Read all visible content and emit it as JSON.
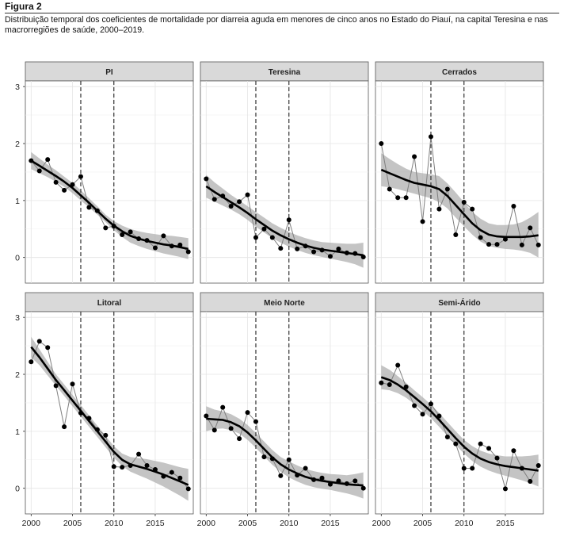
{
  "figure": {
    "label": "Figura 2",
    "caption": "Distribuição temporal dos coeficientes de mortalidade por diarreia aguda em menores de cinco anos no Estado do Piauí, na capital Teresina e nas macrorregiões de saúde, 2000–2019."
  },
  "colors": {
    "strip_fill": "#d9d9d9",
    "panel_bg": "#ffffff",
    "grid": "#e4e4e4",
    "band": "#b0b0b0",
    "raw_line": "#7f7f7f",
    "smooth_line": "#000000",
    "points": "#000000",
    "vlines": "#333333"
  },
  "chart_data": {
    "type": "line",
    "layout": "faceted 2 rows x 3 columns, shared axes",
    "xlim": [
      1999.3,
      2019.6
    ],
    "ylim": [
      -0.45,
      3.1
    ],
    "x_ticks": [
      2000,
      2005,
      2010,
      2015
    ],
    "y_ticks": [
      0,
      1,
      2,
      3
    ],
    "vertical_reference_lines": [
      2006,
      2010
    ],
    "grid": true,
    "x": [
      2000,
      2001,
      2002,
      2003,
      2004,
      2005,
      2006,
      2007,
      2008,
      2009,
      2010,
      2011,
      2012,
      2013,
      2014,
      2015,
      2016,
      2017,
      2018,
      2019
    ],
    "panels": [
      {
        "name": "PI",
        "values": [
          1.7,
          1.52,
          1.72,
          1.32,
          1.18,
          1.28,
          1.42,
          0.88,
          0.82,
          0.52,
          0.55,
          0.4,
          0.45,
          0.33,
          0.3,
          0.17,
          0.38,
          0.2,
          0.22,
          0.1
        ],
        "trend": [
          1.7,
          1.61,
          1.52,
          1.43,
          1.33,
          1.22,
          1.09,
          0.96,
          0.82,
          0.68,
          0.56,
          0.46,
          0.38,
          0.33,
          0.29,
          0.26,
          0.23,
          0.21,
          0.18,
          0.15
        ],
        "lower": [
          1.55,
          1.48,
          1.41,
          1.33,
          1.24,
          1.13,
          1.0,
          0.88,
          0.75,
          0.62,
          0.48,
          0.36,
          0.26,
          0.2,
          0.15,
          0.11,
          0.07,
          0.04,
          0.01,
          -0.03
        ],
        "upper": [
          1.85,
          1.74,
          1.63,
          1.53,
          1.42,
          1.31,
          1.18,
          1.04,
          0.9,
          0.75,
          0.64,
          0.56,
          0.5,
          0.46,
          0.43,
          0.41,
          0.39,
          0.38,
          0.36,
          0.34
        ]
      },
      {
        "name": "Teresina",
        "values": [
          1.38,
          1.02,
          1.08,
          0.9,
          0.98,
          1.1,
          0.35,
          0.5,
          0.35,
          0.16,
          0.66,
          0.15,
          0.2,
          0.1,
          0.13,
          0.02,
          0.15,
          0.08,
          0.07,
          0.01
        ],
        "trend": [
          1.25,
          1.15,
          1.06,
          0.97,
          0.88,
          0.78,
          0.67,
          0.57,
          0.47,
          0.39,
          0.32,
          0.26,
          0.21,
          0.17,
          0.14,
          0.12,
          0.1,
          0.08,
          0.06,
          0.04
        ],
        "lower": [
          1.05,
          0.98,
          0.91,
          0.84,
          0.76,
          0.66,
          0.54,
          0.44,
          0.34,
          0.26,
          0.19,
          0.13,
          0.08,
          0.04,
          0.01,
          -0.02,
          -0.05,
          -0.08,
          -0.12,
          -0.18
        ],
        "upper": [
          1.45,
          1.32,
          1.21,
          1.1,
          1.0,
          0.9,
          0.8,
          0.7,
          0.6,
          0.52,
          0.45,
          0.39,
          0.34,
          0.3,
          0.27,
          0.26,
          0.25,
          0.24,
          0.24,
          0.26
        ]
      },
      {
        "name": "Cerrados",
        "values": [
          2.0,
          1.2,
          1.05,
          1.05,
          1.77,
          0.63,
          2.12,
          0.85,
          1.2,
          0.4,
          0.97,
          0.85,
          0.35,
          0.23,
          0.23,
          0.32,
          0.9,
          0.22,
          0.52,
          0.22
        ],
        "trend": [
          1.54,
          1.48,
          1.42,
          1.36,
          1.31,
          1.28,
          1.25,
          1.2,
          1.08,
          0.92,
          0.76,
          0.6,
          0.48,
          0.4,
          0.37,
          0.36,
          0.36,
          0.36,
          0.37,
          0.39
        ],
        "lower": [
          1.25,
          1.23,
          1.2,
          1.16,
          1.12,
          1.08,
          1.04,
          0.97,
          0.86,
          0.7,
          0.55,
          0.4,
          0.28,
          0.2,
          0.17,
          0.15,
          0.14,
          0.12,
          0.08,
          0.0
        ],
        "upper": [
          1.83,
          1.73,
          1.64,
          1.56,
          1.5,
          1.48,
          1.46,
          1.43,
          1.3,
          1.14,
          0.97,
          0.8,
          0.68,
          0.6,
          0.57,
          0.57,
          0.58,
          0.62,
          0.7,
          0.8
        ]
      },
      {
        "name": "Litoral",
        "values": [
          2.22,
          2.58,
          2.47,
          1.8,
          1.08,
          1.83,
          1.32,
          1.23,
          1.03,
          0.93,
          0.38,
          0.37,
          0.4,
          0.6,
          0.4,
          0.33,
          0.21,
          0.28,
          0.18,
          -0.01
        ],
        "trend": [
          2.48,
          2.3,
          2.1,
          1.9,
          1.72,
          1.54,
          1.36,
          1.18,
          1.0,
          0.82,
          0.64,
          0.5,
          0.42,
          0.38,
          0.34,
          0.29,
          0.24,
          0.18,
          0.12,
          0.06
        ],
        "lower": [
          2.3,
          2.16,
          1.98,
          1.8,
          1.62,
          1.44,
          1.26,
          1.08,
          0.9,
          0.72,
          0.54,
          0.39,
          0.29,
          0.23,
          0.17,
          0.1,
          0.03,
          -0.05,
          -0.13,
          -0.22
        ],
        "upper": [
          2.66,
          2.44,
          2.22,
          2.0,
          1.82,
          1.64,
          1.46,
          1.28,
          1.1,
          0.92,
          0.74,
          0.61,
          0.55,
          0.53,
          0.51,
          0.48,
          0.45,
          0.41,
          0.37,
          0.34
        ]
      },
      {
        "name": "Meio Norte",
        "values": [
          1.27,
          1.02,
          1.42,
          1.05,
          0.87,
          1.33,
          1.17,
          0.55,
          0.52,
          0.22,
          0.5,
          0.23,
          0.35,
          0.15,
          0.18,
          0.07,
          0.13,
          0.08,
          0.13,
          0.0
        ],
        "trend": [
          1.22,
          1.21,
          1.2,
          1.16,
          1.09,
          0.98,
          0.84,
          0.69,
          0.54,
          0.42,
          0.33,
          0.26,
          0.2,
          0.16,
          0.13,
          0.11,
          0.09,
          0.07,
          0.06,
          0.05
        ],
        "lower": [
          1.0,
          1.04,
          1.05,
          1.02,
          0.96,
          0.85,
          0.71,
          0.56,
          0.41,
          0.29,
          0.19,
          0.12,
          0.06,
          0.02,
          -0.01,
          -0.03,
          -0.06,
          -0.09,
          -0.13,
          -0.18
        ],
        "upper": [
          1.44,
          1.38,
          1.35,
          1.3,
          1.22,
          1.11,
          0.97,
          0.82,
          0.67,
          0.55,
          0.47,
          0.4,
          0.34,
          0.3,
          0.27,
          0.25,
          0.24,
          0.23,
          0.25,
          0.28
        ]
      },
      {
        "name": "Semi-Árido",
        "values": [
          1.85,
          1.82,
          2.16,
          1.78,
          1.45,
          1.3,
          1.48,
          1.27,
          0.9,
          0.78,
          0.35,
          0.35,
          0.78,
          0.7,
          0.53,
          -0.01,
          0.66,
          0.35,
          0.12,
          0.4
        ],
        "trend": [
          1.95,
          1.9,
          1.82,
          1.72,
          1.6,
          1.48,
          1.35,
          1.2,
          1.04,
          0.88,
          0.73,
          0.61,
          0.52,
          0.46,
          0.42,
          0.39,
          0.37,
          0.35,
          0.33,
          0.31
        ],
        "lower": [
          1.74,
          1.72,
          1.67,
          1.59,
          1.48,
          1.36,
          1.23,
          1.08,
          0.92,
          0.76,
          0.61,
          0.48,
          0.38,
          0.31,
          0.26,
          0.22,
          0.18,
          0.14,
          0.09,
          0.03
        ],
        "upper": [
          2.16,
          2.08,
          1.97,
          1.85,
          1.72,
          1.6,
          1.47,
          1.32,
          1.16,
          1.0,
          0.85,
          0.74,
          0.66,
          0.61,
          0.58,
          0.56,
          0.56,
          0.56,
          0.57,
          0.59
        ]
      }
    ]
  }
}
